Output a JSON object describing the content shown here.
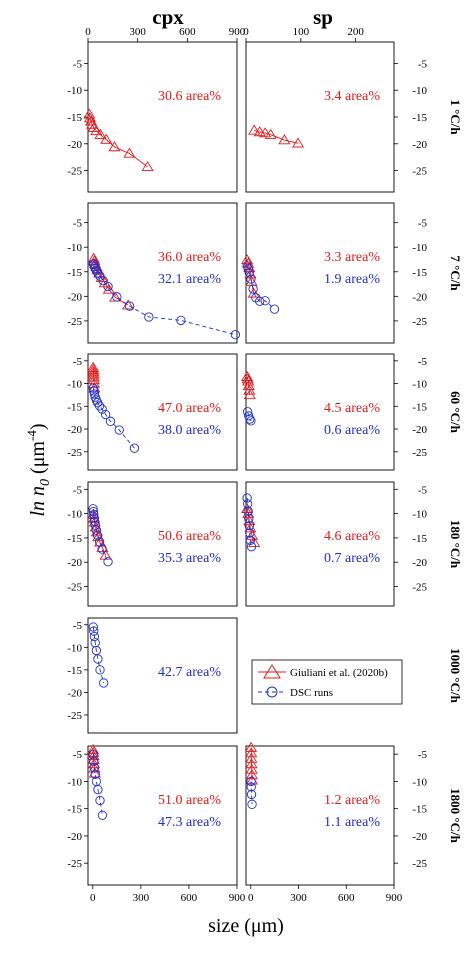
{
  "figure": {
    "column_titles": [
      "cpx",
      "sp"
    ],
    "y_label": "ln n",
    "y_label_sub": "0",
    "y_label_unit_pre": " (μm",
    "y_label_unit_exp": "-4",
    "y_label_unit_post": ")",
    "x_label": "size (μm)",
    "legend": [
      {
        "name": "Giuliani et al. (2020b)",
        "color": "#e31a1c",
        "marker": "triangle",
        "line": "solid"
      },
      {
        "name": "DSC runs",
        "color": "#1f2fd0",
        "marker": "circle",
        "line": "dashed"
      }
    ]
  },
  "chart_data": [
    {
      "type": "scatter",
      "row": 0,
      "col": 0,
      "row_label": "1 °C/h",
      "xlim": [
        0,
        900
      ],
      "ylim": [
        -29,
        -1
      ],
      "xticks": [
        0,
        300,
        600,
        900
      ],
      "xtick_labels_top": [
        "0",
        "300",
        "600",
        "900"
      ],
      "yticks": [
        -5,
        -10,
        -15,
        -20,
        -25
      ],
      "ytick_labels": [
        "-5",
        "-10",
        "-15",
        "-20",
        "-25"
      ],
      "annotations": [
        {
          "text": "30.6 area%",
          "color": "#e31a1c"
        }
      ],
      "series": [
        {
          "name": "Giuliani et al. (2020b)",
          "x": [
            8,
            12,
            18,
            25,
            35,
            50,
            75,
            110,
            160,
            250,
            360
          ],
          "y": [
            -14.5,
            -15.2,
            -15.8,
            -16.4,
            -17,
            -17.6,
            -18.3,
            -19.2,
            -20.6,
            -21.8,
            -24.3
          ]
        }
      ]
    },
    {
      "type": "scatter",
      "row": 0,
      "col": 1,
      "xlim": [
        0,
        270
      ],
      "ylim": [
        -29,
        -1
      ],
      "xticks": [
        0,
        100,
        200
      ],
      "xtick_labels_top": [
        "0",
        "100",
        "200"
      ],
      "yticks": [
        -5,
        -10,
        -15,
        -20,
        -25
      ],
      "ytick_labels": [
        "-5",
        "-10",
        "-15",
        "-20",
        "-25"
      ],
      "annotations": [
        {
          "text": "3.4 area%",
          "color": "#e31a1c"
        }
      ],
      "series": [
        {
          "name": "Giuliani et al. (2020b)",
          "x": [
            15,
            25,
            35,
            45,
            70,
            95
          ],
          "y": [
            -17.5,
            -17.8,
            -18,
            -18.3,
            -19.3,
            -19.9
          ]
        }
      ]
    },
    {
      "type": "scatter",
      "row": 1,
      "col": 0,
      "row_label": "7 °C/h",
      "xlim": [
        -30,
        900
      ],
      "ylim": [
        -29.5,
        -1
      ],
      "yticks": [
        -5,
        -10,
        -15,
        -20,
        -25
      ],
      "ytick_labels": [
        "-5",
        "-10",
        "-15",
        "-20",
        "-25"
      ],
      "annotations": [
        {
          "text": "36.0 area%",
          "color": "#e31a1c"
        },
        {
          "text": "32.1 area%",
          "color": "#1f2fd0"
        }
      ],
      "series": [
        {
          "name": "Giuliani et al. (2020b)",
          "x": [
            5,
            10,
            15,
            22,
            30,
            40,
            55,
            75,
            100,
            140,
            220
          ],
          "y": [
            -12.3,
            -12.8,
            -13.4,
            -14,
            -14.6,
            -15.3,
            -16.2,
            -17.3,
            -18.6,
            -20.2,
            -21.8
          ]
        },
        {
          "name": "DSC runs",
          "x": [
            3,
            6,
            10,
            15,
            22,
            32,
            45,
            65,
            95,
            150,
            230,
            350,
            550,
            890
          ],
          "y": [
            -13.4,
            -13.6,
            -14,
            -14.3,
            -14.8,
            -15.3,
            -15.9,
            -16.8,
            -18,
            -20.1,
            -22,
            -24.2,
            -24.9,
            -27.8
          ]
        }
      ]
    },
    {
      "type": "scatter",
      "row": 1,
      "col": 1,
      "xlim": [
        0,
        270
      ],
      "ylim": [
        -29.5,
        -1
      ],
      "yticks": [
        -5,
        -10,
        -15,
        -20,
        -25
      ],
      "ytick_labels": [
        "-5",
        "-10",
        "-15",
        "-20",
        "-25"
      ],
      "annotations": [
        {
          "text": "3.3 area%",
          "color": "#e31a1c"
        },
        {
          "text": "1.9 area%",
          "color": "#1f2fd0"
        }
      ],
      "series": [
        {
          "name": "Giuliani et al. (2020b)",
          "x": [
            2,
            4,
            6,
            8,
            10,
            14
          ],
          "y": [
            -12.6,
            -13.3,
            -14.2,
            -15.5,
            -17,
            -19.4
          ]
        },
        {
          "name": "DSC runs",
          "x": [
            2,
            4,
            6,
            9,
            13,
            18,
            25,
            35,
            52
          ],
          "y": [
            -13.8,
            -14.4,
            -15.2,
            -16.5,
            -18.5,
            -20.3,
            -21,
            -20.9,
            -22.6
          ]
        }
      ]
    },
    {
      "type": "scatter",
      "row": 2,
      "col": 0,
      "row_label": "60 °C/h",
      "xlim": [
        -30,
        900
      ],
      "ylim": [
        -29,
        -3.5
      ],
      "yticks": [
        -5,
        -10,
        -15,
        -20,
        -25
      ],
      "ytick_labels": [
        "-5",
        "-10",
        "-15",
        "-20",
        "-25"
      ],
      "annotations": [
        {
          "text": "47.0 area%",
          "color": "#e31a1c"
        },
        {
          "text": "38.0 area%",
          "color": "#1f2fd0"
        }
      ],
      "series": [
        {
          "name": "Giuliani et al. (2020b)",
          "x": [
            2,
            3,
            4,
            5,
            6,
            7,
            8,
            10
          ],
          "y": [
            -6.5,
            -7,
            -7.5,
            -8,
            -8.6,
            -9.2,
            -10,
            -11
          ]
        },
        {
          "name": "DSC runs",
          "x": [
            3,
            6,
            10,
            15,
            22,
            30,
            42,
            58,
            80,
            110,
            165,
            260
          ],
          "y": [
            -11,
            -11.6,
            -12.3,
            -13,
            -13.6,
            -14.2,
            -14.9,
            -15.6,
            -16.8,
            -18.3,
            -20.2,
            -24.2
          ]
        }
      ]
    },
    {
      "type": "scatter",
      "row": 2,
      "col": 1,
      "xlim": [
        0,
        270
      ],
      "ylim": [
        -29,
        -3.5
      ],
      "yticks": [
        -5,
        -10,
        -15,
        -20,
        -25
      ],
      "ytick_labels": [
        "-5",
        "-10",
        "-15",
        "-20",
        "-25"
      ],
      "annotations": [
        {
          "text": "4.5 area%",
          "color": "#e31a1c"
        },
        {
          "text": "0.6 area%",
          "color": "#1f2fd0"
        }
      ],
      "series": [
        {
          "name": "Giuliani et al. (2020b)",
          "x": [
            2,
            3,
            4,
            5,
            6,
            7
          ],
          "y": [
            -8.5,
            -9,
            -9.5,
            -10.5,
            -11.5,
            -12.5
          ]
        },
        {
          "name": "DSC runs",
          "x": [
            3,
            5,
            7,
            9
          ],
          "y": [
            -16.2,
            -17.1,
            -17.8,
            -18.2
          ]
        }
      ]
    },
    {
      "type": "scatter",
      "row": 3,
      "col": 0,
      "row_label": "180 °C/h",
      "xlim": [
        -30,
        900
      ],
      "ylim": [
        -29,
        -3.5
      ],
      "yticks": [
        -5,
        -10,
        -15,
        -20,
        -25
      ],
      "ytick_labels": [
        "-5",
        "-10",
        "-15",
        "-20",
        "-25"
      ],
      "annotations": [
        {
          "text": "50.6 area%",
          "color": "#e31a1c"
        },
        {
          "text": "35.3 area%",
          "color": "#1f2fd0"
        }
      ],
      "series": [
        {
          "name": "Giuliani et al. (2020b)",
          "x": [
            4,
            8,
            12,
            18,
            25,
            34,
            45,
            60,
            80
          ],
          "y": [
            -10.2,
            -11,
            -11.8,
            -12.8,
            -13.8,
            -14.8,
            -15.9,
            -17,
            -18.6
          ]
        },
        {
          "name": "DSC runs",
          "x": [
            2,
            4,
            6,
            9,
            12,
            16,
            22,
            30,
            42,
            58,
            95
          ],
          "y": [
            -9,
            -9.6,
            -10.2,
            -10.9,
            -11.6,
            -12.4,
            -13.4,
            -14.5,
            -15.8,
            -17.3,
            -19.9
          ]
        }
      ]
    },
    {
      "type": "scatter",
      "row": 3,
      "col": 1,
      "xlim": [
        0,
        270
      ],
      "ylim": [
        -29,
        -3.5
      ],
      "yticks": [
        -5,
        -10,
        -15,
        -20,
        -25
      ],
      "ytick_labels": [
        "-5",
        "-10",
        "-15",
        "-20",
        "-25"
      ],
      "annotations": [
        {
          "text": "4.6 area%",
          "color": "#e31a1c"
        },
        {
          "text": "0.7 area%",
          "color": "#1f2fd0"
        }
      ],
      "series": [
        {
          "name": "Giuliani et al. (2020b)",
          "x": [
            2,
            4,
            6,
            8,
            11,
            15
          ],
          "y": [
            -9,
            -10,
            -11.5,
            -13,
            -14.5,
            -16
          ]
        },
        {
          "name": "DSC runs",
          "x": [
            2,
            3,
            4,
            5,
            6,
            7,
            8,
            10
          ],
          "y": [
            -6.8,
            -8,
            -9.5,
            -11,
            -12.5,
            -14,
            -15.5,
            -16.8
          ]
        }
      ]
    },
    {
      "type": "scatter",
      "row": 4,
      "col": 0,
      "row_label": "1000 °C/h",
      "xlim": [
        -30,
        900
      ],
      "ylim": [
        -29,
        -3.5
      ],
      "yticks": [
        -5,
        -10,
        -15,
        -20,
        -25
      ],
      "ytick_labels": [
        "-5",
        "-10",
        "-15",
        "-20",
        "-25"
      ],
      "annotations": [
        {
          "text": "42.7 area%",
          "color": "#1f2fd0"
        }
      ],
      "series": [
        {
          "name": "DSC runs",
          "x": [
            3,
            6,
            10,
            15,
            22,
            32,
            45,
            68
          ],
          "y": [
            -5.5,
            -6.4,
            -7.6,
            -9,
            -10.7,
            -12.6,
            -15,
            -17.9
          ]
        }
      ]
    },
    {
      "type": "scatter",
      "row": 5,
      "col": 0,
      "row_label": "1800 °C/h",
      "xlim": [
        -30,
        900
      ],
      "ylim": [
        -29,
        -3.5
      ],
      "xticks": [
        0,
        300,
        600,
        900
      ],
      "xtick_labels_bottom": [
        "0",
        "300",
        "600",
        "900"
      ],
      "yticks": [
        -5,
        -10,
        -15,
        -20,
        -25
      ],
      "ytick_labels": [
        "-5",
        "-10",
        "-15",
        "-20",
        "-25"
      ],
      "annotations": [
        {
          "text": "51.0 area%",
          "color": "#e31a1c"
        },
        {
          "text": "47.3 area%",
          "color": "#1f2fd0"
        }
      ],
      "series": [
        {
          "name": "Giuliani et al. (2020b)",
          "x": [
            2,
            3,
            4,
            6,
            8,
            10,
            13
          ],
          "y": [
            -4.2,
            -4.7,
            -5.3,
            -6,
            -6.8,
            -7.6,
            -8.5
          ]
        },
        {
          "name": "DSC runs",
          "x": [
            3,
            6,
            10,
            15,
            22,
            32,
            45,
            60
          ],
          "y": [
            -5,
            -6.3,
            -7.5,
            -8.7,
            -10,
            -11.5,
            -13.5,
            -16.2
          ]
        }
      ]
    },
    {
      "type": "scatter",
      "row": 5,
      "col": 1,
      "xlim": [
        -30,
        900
      ],
      "ylim": [
        -29,
        -3.5
      ],
      "xticks": [
        0,
        300,
        600,
        900
      ],
      "xtick_labels_bottom": [
        "0",
        "300",
        "600",
        "900"
      ],
      "yticks": [
        -5,
        -10,
        -15,
        -20,
        -25
      ],
      "ytick_labels": [
        "-5",
        "-10",
        "-15",
        "-20",
        "-25"
      ],
      "annotations": [
        {
          "text": "1.2 area%",
          "color": "#e31a1c"
        },
        {
          "text": "1.1 area%",
          "color": "#1f2fd0"
        }
      ],
      "series": [
        {
          "name": "Giuliani et al. (2020b)",
          "x": [
            2,
            3,
            4,
            5,
            6,
            7,
            8
          ],
          "y": [
            -3.8,
            -4.8,
            -5.8,
            -6.8,
            -7.8,
            -8.8,
            -9.8
          ]
        },
        {
          "name": "DSC runs",
          "x": [
            2,
            3,
            5,
            8
          ],
          "y": [
            -10,
            -11,
            -12.4,
            -14.2
          ]
        }
      ]
    }
  ]
}
